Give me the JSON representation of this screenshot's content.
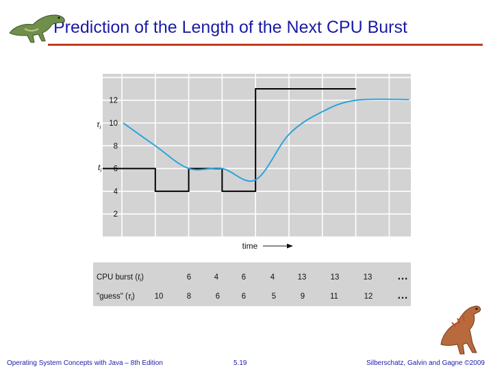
{
  "slide": {
    "title": "Prediction of the Length of the Next CPU Burst",
    "footer_left": "Operating System Concepts with Java – 8th Edition",
    "footer_center": "5.19",
    "footer_right": "Silberschatz, Galvin and Gagne ©2009"
  },
  "colors": {
    "title": "#1a1aa6",
    "rule": "#c23a1e",
    "chart_bg": "#d3d3d3",
    "grid": "#ffffff",
    "burst_line": "#000000",
    "guess_curve": "#2aa3dd",
    "footer": "#1a1aa6"
  },
  "icons": {
    "top_left": "dinosaur-icon",
    "bottom_right": "dinosaur-icon"
  },
  "chart_data": {
    "type": "line",
    "title": "",
    "xlabel": "time",
    "ylim": [
      0,
      14
    ],
    "y_ticks": [
      "2",
      "4",
      "6",
      "8",
      "10",
      "12"
    ],
    "grid": true,
    "series": [
      {
        "name": "t_i",
        "label_main": "t",
        "label_sub": "i",
        "style": "step",
        "values": [
          6,
          4,
          6,
          4,
          13,
          13,
          13
        ]
      },
      {
        "name": "tau_i",
        "label_main": "τ",
        "label_sub": "i",
        "style": "smooth",
        "values": [
          10,
          8,
          6,
          6,
          5,
          9,
          11,
          12
        ]
      }
    ],
    "table": {
      "rows": [
        {
          "label_pre": "CPU burst (",
          "label_var": "t",
          "label_sub": "i",
          "label_post": ")",
          "values": [
            "6",
            "4",
            "6",
            "4",
            "13",
            "13",
            "13"
          ],
          "ellipsis": "…"
        },
        {
          "label_pre": "\"guess\" (",
          "label_var": "τ",
          "label_sub": "i",
          "label_post": ")",
          "values": [
            "10",
            "8",
            "6",
            "6",
            "5",
            "9",
            "11",
            "12"
          ],
          "ellipsis": "…"
        }
      ]
    }
  }
}
